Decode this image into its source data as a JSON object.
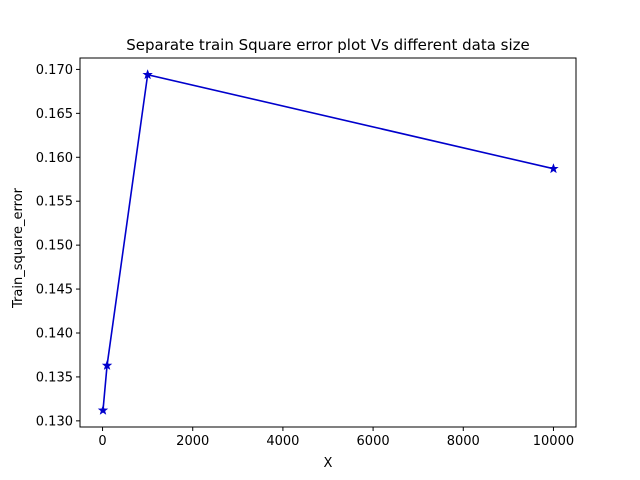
{
  "chart_data": {
    "type": "line",
    "title": "Separate train Square error plot Vs different data size",
    "xlabel": "X",
    "ylabel": "Train_square_error",
    "xlim": [
      -500,
      10500
    ],
    "ylim": [
      0.1293,
      0.1713
    ],
    "xticks": [
      0,
      2000,
      4000,
      6000,
      8000,
      10000
    ],
    "yticks": [
      0.13,
      0.135,
      0.14,
      0.145,
      0.15,
      0.155,
      0.16,
      0.165,
      0.17
    ],
    "xtick_labels": [
      "0",
      "2000",
      "4000",
      "6000",
      "8000",
      "10000"
    ],
    "ytick_labels": [
      "0.130",
      "0.135",
      "0.140",
      "0.145",
      "0.150",
      "0.155",
      "0.160",
      "0.165",
      "0.170"
    ],
    "grid": false,
    "marker": "star",
    "series": [
      {
        "color": "#0000cc",
        "x": [
          10,
          100,
          1000,
          10000
        ],
        "y": [
          0.1312,
          0.1363,
          0.1694,
          0.1587
        ]
      }
    ]
  }
}
